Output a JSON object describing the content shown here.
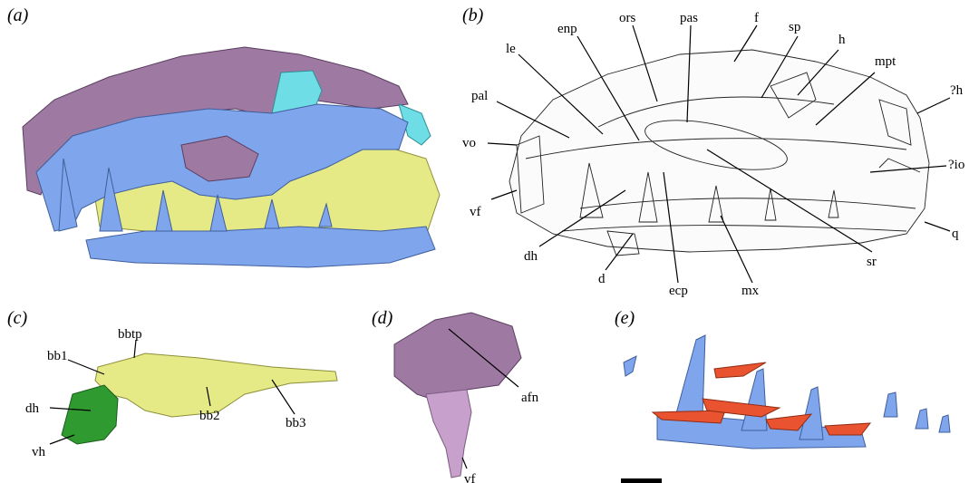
{
  "panels": {
    "a": {
      "label": "(a)"
    },
    "b": {
      "label": "(b)",
      "labels": {
        "enp": "enp",
        "ors": "ors",
        "pas": "pas",
        "f": "f",
        "sp": "sp",
        "le": "le",
        "h": "h",
        "mpt": "mpt",
        "pal": "pal",
        "qh": "?h",
        "vo": "vo",
        "qio": "?io",
        "vf": "vf",
        "q": "q",
        "dh": "dh",
        "d": "d",
        "ecp": "ecp",
        "mx": "mx",
        "sr": "sr"
      }
    },
    "c": {
      "label": "(c)",
      "labels": {
        "bbtp": "bbtp",
        "bb1": "bb1",
        "dh": "dh",
        "vh": "vh",
        "bb2": "bb2",
        "bb3": "bb3"
      }
    },
    "d": {
      "label": "(d)",
      "labels": {
        "afn": "afn",
        "vf": "vf"
      }
    },
    "e": {
      "label": "(e)"
    }
  },
  "colors": {
    "blue": "#7fa6ec",
    "purple": "#9e7aa3",
    "yellow": "#e6ea86",
    "cyan": "#6fdde6",
    "green": "#2f9a2f",
    "lilac": "#c7a0cc",
    "red": "#e9532f",
    "scale": "#000000"
  }
}
